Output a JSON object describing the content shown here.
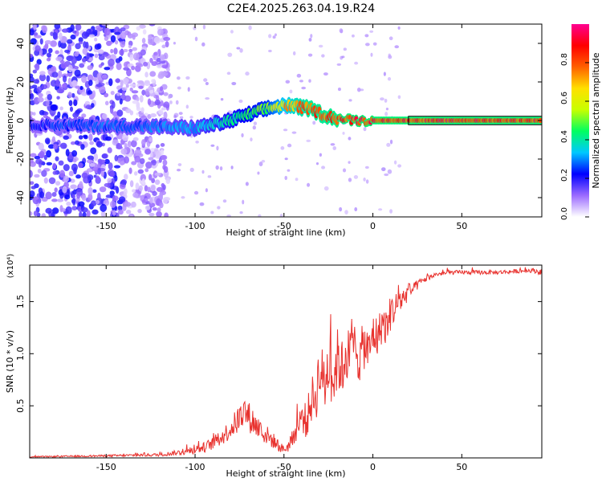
{
  "title": "C2E4.2025.263.04.19.R24",
  "colors": {
    "snr_line": "#e8322e",
    "axis": "#000000",
    "background": "#ffffff"
  },
  "chart_data": [
    {
      "type": "heatmap",
      "name": "spectrogram",
      "xlabel": "Height of straight line (km)",
      "ylabel": "Frequency (Hz)",
      "xlim": [
        -193,
        95
      ],
      "ylim": [
        -50,
        50
      ],
      "xticks": [
        -150,
        -100,
        -50,
        0,
        50
      ],
      "xtick_labels": [
        "-150",
        "-100",
        "-50",
        "0",
        "50"
      ],
      "yticks": [
        -40,
        -20,
        0,
        20,
        40
      ],
      "ytick_labels": [
        "-40",
        "-20",
        "0",
        "20",
        "40"
      ],
      "colorbar": {
        "label": "Normalized spectral amplitude",
        "range": [
          0,
          1
        ],
        "ticks": [
          0.0,
          0.2,
          0.4,
          0.6,
          0.8
        ],
        "tick_labels": [
          "0.0",
          "0.2",
          "0.4",
          "0.6",
          "0.8"
        ],
        "stops": [
          "#ffffff",
          "#9c6bff",
          "#0000ff",
          "#00c8ff",
          "#00ff60",
          "#c8ff00",
          "#ffe000",
          "#ff6000",
          "#ff0000",
          "#ff0090"
        ]
      },
      "ridge": {
        "x": [
          -193,
          -150,
          -130,
          -100,
          -80,
          -60,
          -50,
          -42,
          -35,
          -28,
          -20,
          -10,
          0,
          10,
          20,
          95
        ],
        "freq": [
          -2,
          -3,
          -3,
          -4,
          0,
          6,
          8,
          7,
          6,
          3,
          1,
          0,
          0,
          0,
          0,
          0
        ],
        "amplitude": [
          0.25,
          0.3,
          0.3,
          0.35,
          0.45,
          0.55,
          0.75,
          0.85,
          0.9,
          0.9,
          0.92,
          0.95,
          0.95,
          0.95,
          0.95,
          0.95
        ]
      },
      "noise_region": {
        "x_from": -193,
        "x_to": -115,
        "amplitude": 0.15
      }
    },
    {
      "type": "line",
      "name": "snr",
      "xlabel": "Height of straight line (km)",
      "ylabel": "SNR (10 * v/v)",
      "scale_label": "(x10⁴)",
      "xlim": [
        -193,
        95
      ],
      "ylim": [
        0,
        1.85
      ],
      "xticks": [
        -150,
        -100,
        -50,
        0,
        50
      ],
      "xtick_labels": [
        "-150",
        "-100",
        "-50",
        "0",
        "50"
      ],
      "yticks": [
        0.5,
        1.0,
        1.5
      ],
      "ytick_labels": [
        "0.5",
        "1.0",
        "1.5"
      ],
      "series": [
        {
          "name": "SNR",
          "x": [
            -193,
            -150,
            -120,
            -105,
            -100,
            -95,
            -90,
            -85,
            -80,
            -75,
            -72,
            -70,
            -65,
            -60,
            -55,
            -52,
            -50,
            -47,
            -45,
            -42,
            -40,
            -37,
            -35,
            -32,
            -30,
            -27,
            -25,
            -22,
            -20,
            -17,
            -15,
            -12,
            -10,
            -7,
            -5,
            -2,
            0,
            3,
            5,
            8,
            10,
            13,
            15,
            18,
            20,
            23,
            25,
            28,
            30,
            33,
            35,
            40,
            45,
            50,
            60,
            70,
            80,
            90,
            95
          ],
          "y": [
            0.01,
            0.02,
            0.03,
            0.06,
            0.08,
            0.1,
            0.14,
            0.2,
            0.28,
            0.38,
            0.45,
            0.4,
            0.3,
            0.22,
            0.15,
            0.1,
            0.08,
            0.12,
            0.2,
            0.3,
            0.4,
            0.35,
            0.55,
            0.6,
            0.85,
            0.7,
            0.9,
            0.75,
            0.95,
            0.85,
            1.05,
            0.9,
            1.1,
            0.95,
            1.1,
            1.0,
            1.2,
            1.15,
            1.3,
            1.25,
            1.4,
            1.45,
            1.5,
            1.55,
            1.6,
            1.62,
            1.66,
            1.7,
            1.72,
            1.74,
            1.76,
            1.77,
            1.78,
            1.78,
            1.78,
            1.78,
            1.79,
            1.8,
            1.78
          ],
          "noise_amplitude": [
            0.005,
            0.01,
            0.015,
            0.03,
            0.04,
            0.05,
            0.06,
            0.08,
            0.1,
            0.14,
            0.15,
            0.15,
            0.12,
            0.1,
            0.07,
            0.05,
            0.04,
            0.06,
            0.08,
            0.12,
            0.15,
            0.18,
            0.22,
            0.25,
            0.3,
            0.28,
            0.3,
            0.28,
            0.3,
            0.28,
            0.3,
            0.28,
            0.3,
            0.25,
            0.25,
            0.22,
            0.22,
            0.2,
            0.2,
            0.18,
            0.18,
            0.15,
            0.12,
            0.1,
            0.08,
            0.06,
            0.05,
            0.04,
            0.03,
            0.025,
            0.02,
            0.02,
            0.02,
            0.02,
            0.02,
            0.02,
            0.02,
            0.02,
            0.03
          ]
        }
      ]
    }
  ]
}
